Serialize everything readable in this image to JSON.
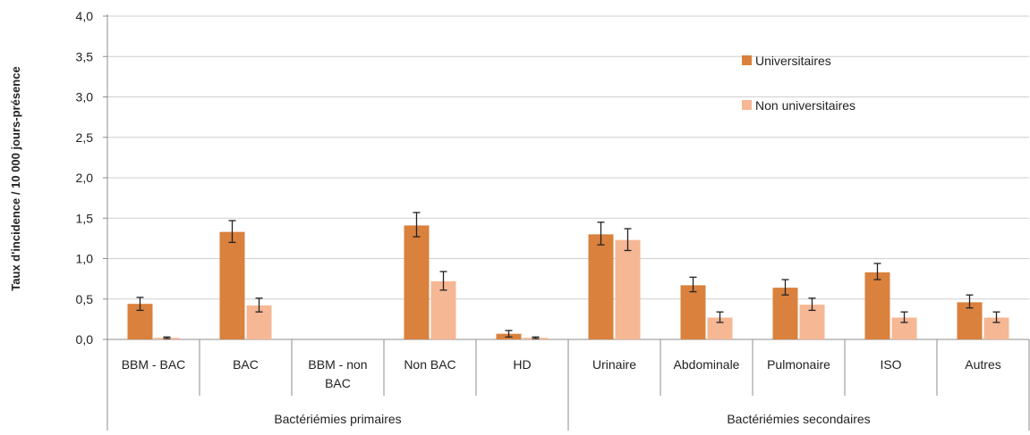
{
  "chart_data": {
    "type": "bar",
    "ylabel": "Taux d'incidence  / 10 000 jours-présence",
    "ylim": [
      0,
      4
    ],
    "yticks": [
      "0,0",
      "0,5",
      "1,0",
      "1,5",
      "2,0",
      "2,5",
      "3,0",
      "3,5",
      "4,0"
    ],
    "grid": true,
    "legend_position": "top-right",
    "error_bars": true,
    "categories": [
      "BBM - BAC",
      "BAC",
      "BBM - non BAC",
      "Non BAC",
      "HD",
      "Urinaire",
      "Abdominale",
      "Pulmonaire",
      "ISO",
      "Autres"
    ],
    "category_label_lines": [
      [
        "BBM - BAC"
      ],
      [
        "BAC"
      ],
      [
        "BBM - non",
        "BAC"
      ],
      [
        "Non BAC"
      ],
      [
        "HD"
      ],
      [
        "Urinaire"
      ],
      [
        "Abdominale"
      ],
      [
        "Pulmonaire"
      ],
      [
        "ISO"
      ],
      [
        "Autres"
      ]
    ],
    "groups": [
      {
        "label": "Bactériémies primaires",
        "start": 0,
        "end": 4
      },
      {
        "label": "Bactériémies secondaires",
        "start": 5,
        "end": 9
      }
    ],
    "series": [
      {
        "name": "Universitaires",
        "color": "#D9813D",
        "values": [
          0.44,
          1.33,
          0,
          1.41,
          0.07,
          1.3,
          0.67,
          0.64,
          0.83,
          0.46
        ],
        "error_low": [
          0.36,
          1.2,
          0,
          1.27,
          0.03,
          1.17,
          0.59,
          0.55,
          0.74,
          0.39
        ],
        "error_high": [
          0.52,
          1.47,
          0,
          1.57,
          0.11,
          1.45,
          0.77,
          0.74,
          0.94,
          0.55
        ]
      },
      {
        "name": "Non universitaires",
        "color": "#F6B795",
        "values": [
          0.02,
          0.42,
          0,
          0.72,
          0.02,
          1.23,
          0.27,
          0.43,
          0.27,
          0.27
        ],
        "error_low": [
          0.01,
          0.34,
          0,
          0.61,
          0.01,
          1.1,
          0.21,
          0.36,
          0.21,
          0.21
        ],
        "error_high": [
          0.03,
          0.51,
          0,
          0.84,
          0.03,
          1.37,
          0.34,
          0.51,
          0.34,
          0.34
        ]
      }
    ]
  }
}
